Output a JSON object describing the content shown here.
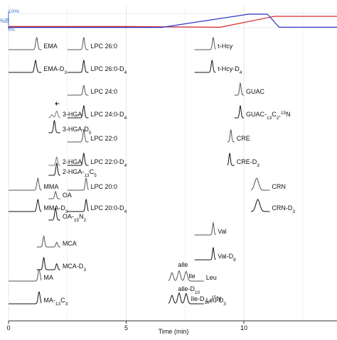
{
  "chart_data": {
    "type": "line",
    "title": "",
    "xlabel": "Time (min)",
    "ylabel": "",
    "xlim": [
      -0.3,
      14
    ],
    "xticks": [
      0,
      5,
      10
    ],
    "gradient": {
      "top_label": "100%",
      "bottom_label": "0%",
      "side_label": "%B",
      "series": [
        {
          "name": "",
          "color": "#d62728",
          "points": [
            [
              0,
              8
            ],
            [
              5,
              8
            ],
            [
              9,
              3
            ],
            [
              11.3,
              80
            ],
            [
              14,
              80
            ]
          ]
        },
        {
          "name": "",
          "color": "#2b36c4",
          "points": [
            [
              0,
              2
            ],
            [
              6.5,
              2
            ],
            [
              10.2,
              95
            ],
            [
              11,
              95
            ],
            [
              11.5,
              3
            ],
            [
              14,
              3
            ]
          ]
        }
      ]
    },
    "traces": [
      {
        "label": "EMA",
        "color": "#555555",
        "row": 1,
        "x_start": 0,
        "x_end": 1.4,
        "peaks": [
          {
            "rt": 1.2,
            "height": 1.0,
            "width": 0.045
          }
        ]
      },
      {
        "label": "EMA-D",
        "sub": "3",
        "sup": "",
        "color": "#111111",
        "row": 2,
        "x_start": 0,
        "x_end": 1.4,
        "peaks": [
          {
            "rt": 1.15,
            "height": 1.0,
            "width": 0.045
          }
        ]
      },
      {
        "label": "LPC 26:0",
        "color": "#555555",
        "row": 1,
        "x_start": 2.5,
        "x_end": 3.4,
        "peaks": [
          {
            "rt": 3.2,
            "height": 1.0,
            "width": 0.04
          }
        ]
      },
      {
        "label": "LPC 26:0-D",
        "sub": "4",
        "sup": "",
        "color": "#111111",
        "row": 2,
        "x_start": 2.5,
        "x_end": 3.4,
        "peaks": [
          {
            "rt": 3.2,
            "height": 1.0,
            "width": 0.04
          }
        ]
      },
      {
        "label": "t-Hcy",
        "color": "#555555",
        "row": 1,
        "x_start": 7.9,
        "x_end": 8.8,
        "peaks": [
          {
            "rt": 8.7,
            "height": 1.0,
            "width": 0.04
          }
        ]
      },
      {
        "label": "t-Hcy-D",
        "sub": "4",
        "sup": "",
        "color": "#111111",
        "row": 2,
        "x_start": 7.9,
        "x_end": 8.8,
        "peaks": [
          {
            "rt": 8.65,
            "height": 1.0,
            "width": 0.04
          }
        ]
      },
      {
        "label": "LPC 24:0",
        "color": "#555555",
        "row": 3,
        "x_start": 2.5,
        "x_end": 3.4,
        "peaks": [
          {
            "rt": 3.2,
            "height": 0.8,
            "width": 0.04
          }
        ]
      },
      {
        "label": "GUAC",
        "color": "#555555",
        "row": 3,
        "x_start": 9.6,
        "x_end": 10.0,
        "peaks": [
          {
            "rt": 9.85,
            "height": 1.0,
            "width": 0.035
          }
        ]
      },
      {
        "label": "3-HGA",
        "color": "#777777",
        "row": 4,
        "x_start": 1.7,
        "x_end": 2.2,
        "peaks": [
          {
            "rt": 1.85,
            "height": 0.25,
            "width": 0.05
          },
          {
            "rt": 2.05,
            "height": 0.55,
            "width": 0.05
          }
        ]
      },
      {
        "label": "LPC 24:0-D",
        "sub": "4",
        "sup": "",
        "color": "#111111",
        "row": 4,
        "x_start": 2.5,
        "x_end": 3.4,
        "peaks": [
          {
            "rt": 3.2,
            "height": 1.0,
            "width": 0.04
          }
        ]
      },
      {
        "label": "GUAC-",
        "sub": "13",
        "sup": "",
        "extra": "C",
        "sub2": "2",
        "tail": ",",
        "sup2": "15",
        "tail2": "N",
        "color": "#111111",
        "row": 4,
        "x_start": 9.6,
        "x_end": 10.0,
        "peaks": [
          {
            "rt": 9.85,
            "height": 1.0,
            "width": 0.035
          }
        ]
      },
      {
        "label": "3-HGA-D",
        "sub": "5",
        "sup": "",
        "color": "#111111",
        "row": 5,
        "x_start": 1.7,
        "x_end": 2.2,
        "peaks": [
          {
            "rt": 1.95,
            "height": 1.0,
            "width": 0.04
          }
        ]
      },
      {
        "label": "LPC 22:0",
        "color": "#555555",
        "row": 6,
        "x_start": 2.5,
        "x_end": 3.4,
        "peaks": [
          {
            "rt": 3.2,
            "height": 1.0,
            "width": 0.04
          }
        ]
      },
      {
        "label": "CRE",
        "color": "#555555",
        "row": 6,
        "x_start": 9.3,
        "x_end": 9.6,
        "peaks": [
          {
            "rt": 9.45,
            "height": 1.0,
            "width": 0.035
          }
        ]
      },
      {
        "label": "2-HGA",
        "color": "#777777",
        "row": 7,
        "x_start": 1.7,
        "x_end": 2.2,
        "peaks": [
          {
            "rt": 2.05,
            "height": 0.7,
            "width": 0.04
          }
        ]
      },
      {
        "label": "LPC 22:0-D",
        "sub": "4",
        "sup": "",
        "color": "#111111",
        "row": 7,
        "x_start": 2.5,
        "x_end": 3.4,
        "peaks": [
          {
            "rt": 3.2,
            "height": 1.0,
            "width": 0.04
          }
        ]
      },
      {
        "label": "CRE-D",
        "sub": "3",
        "sup": "",
        "color": "#111111",
        "row": 7,
        "x_start": 9.3,
        "x_end": 9.6,
        "peaks": [
          {
            "rt": 9.4,
            "height": 1.0,
            "width": 0.035
          }
        ]
      },
      {
        "label": "2-HGA-",
        "sub": "13",
        "sup": "",
        "extra": "C",
        "sub2": "5",
        "color": "#111111",
        "row": 8,
        "x_start": 1.7,
        "x_end": 2.2,
        "peaks": [
          {
            "rt": 2.05,
            "height": 1.0,
            "width": 0.04
          }
        ]
      },
      {
        "label": "MMA",
        "color": "#555555",
        "row": 9,
        "x_start": 0,
        "x_end": 1.4,
        "peaks": [
          {
            "rt": 1.25,
            "height": 1.0,
            "width": 0.045
          }
        ]
      },
      {
        "label": "LPC 20:0",
        "color": "#555555",
        "row": 9,
        "x_start": 2.5,
        "x_end": 3.4,
        "peaks": [
          {
            "rt": 3.3,
            "height": 1.0,
            "width": 0.04
          }
        ]
      },
      {
        "label": "CRN",
        "color": "#555555",
        "row": 9,
        "x_start": 10.3,
        "x_end": 11.1,
        "peaks": [
          {
            "rt": 10.55,
            "height": 1.0,
            "width": 0.09
          }
        ]
      },
      {
        "label": "OA",
        "color": "#555555",
        "row": 10,
        "x_start": 1.7,
        "x_end": 2.2,
        "peaks": [
          {
            "rt": 2.0,
            "height": 0.6,
            "width": 0.04
          }
        ]
      },
      {
        "label": "MMA-D",
        "sub": "3",
        "sup": "",
        "color": "#111111",
        "row": 11,
        "x_start": 0,
        "x_end": 1.4,
        "peaks": [
          {
            "rt": 1.25,
            "height": 1.0,
            "width": 0.045
          }
        ]
      },
      {
        "label": "LPC 20:0-D",
        "sub": "4",
        "sup": "",
        "color": "#111111",
        "row": 11,
        "x_start": 2.5,
        "x_end": 3.4,
        "peaks": [
          {
            "rt": 3.3,
            "height": 1.0,
            "width": 0.04
          }
        ]
      },
      {
        "label": "CRN-D",
        "sub": "3",
        "sup": "",
        "color": "#111111",
        "row": 11,
        "x_start": 10.3,
        "x_end": 11.1,
        "peaks": [
          {
            "rt": 10.6,
            "height": 1.0,
            "width": 0.09
          }
        ]
      },
      {
        "label": "OA-",
        "sub": "15",
        "sup": "",
        "extra": "N",
        "sub2": "2",
        "color": "#111111",
        "row": 12,
        "x_start": 1.7,
        "x_end": 2.2,
        "peaks": [
          {
            "rt": 2.0,
            "height": 1.0,
            "width": 0.04
          }
        ]
      },
      {
        "label": "Val",
        "color": "#555555",
        "row": 13,
        "x_start": 7.9,
        "x_end": 8.8,
        "peaks": [
          {
            "rt": 8.7,
            "height": 1.0,
            "width": 0.035
          }
        ]
      },
      {
        "label": "MCA",
        "color": "#555555",
        "row": 14,
        "x_start": 1.2,
        "x_end": 2.2,
        "peaks": [
          {
            "rt": 1.5,
            "height": 0.9,
            "width": 0.04
          },
          {
            "rt": 2.05,
            "height": 0.4,
            "width": 0.04
          }
        ]
      },
      {
        "label": "Val-D",
        "sub": "8",
        "sup": "",
        "color": "#111111",
        "row": 15,
        "x_start": 7.9,
        "x_end": 8.8,
        "peaks": [
          {
            "rt": 8.7,
            "height": 1.0,
            "width": 0.035
          }
        ]
      },
      {
        "label": "MCA-D",
        "sub": "3",
        "sup": "",
        "color": "#111111",
        "row": 16,
        "x_start": 1.2,
        "x_end": 2.2,
        "peaks": [
          {
            "rt": 1.5,
            "height": 1.0,
            "width": 0.04
          },
          {
            "rt": 2.05,
            "height": 0.5,
            "width": 0.04
          }
        ]
      },
      {
        "label": "MA",
        "color": "#555555",
        "row": 17,
        "x_start": 0,
        "x_end": 1.4,
        "peaks": [
          {
            "rt": 1.3,
            "height": 1.0,
            "width": 0.045
          }
        ]
      },
      {
        "label": "Leu",
        "color": "#555555",
        "row": 17,
        "x_start": 6.8,
        "x_end": 8.3,
        "peaks": [
          {
            "rt": 6.95,
            "height": 0.7,
            "width": 0.06
          },
          {
            "rt": 7.25,
            "height": 0.85,
            "width": 0.06
          },
          {
            "rt": 7.55,
            "height": 0.8,
            "width": 0.06
          }
        ]
      },
      {
        "label": "MA-",
        "sub": "13",
        "sup": "",
        "extra": "C",
        "sub2": "3",
        "color": "#111111",
        "row": 19,
        "x_start": 0,
        "x_end": 1.4,
        "peaks": [
          {
            "rt": 1.3,
            "height": 1.0,
            "width": 0.045
          }
        ]
      },
      {
        "label": "Leu-D",
        "sub": "3",
        "sup": "",
        "color": "#111111",
        "row": 19,
        "x_start": 6.8,
        "x_end": 8.3,
        "peaks": [
          {
            "rt": 6.95,
            "height": 0.7,
            "width": 0.06
          },
          {
            "rt": 7.25,
            "height": 0.9,
            "width": 0.06
          },
          {
            "rt": 7.55,
            "height": 0.85,
            "width": 0.06
          }
        ]
      }
    ],
    "extra_labels": [
      {
        "label": "alle",
        "color": "#111111"
      },
      {
        "label": "Ile",
        "color": "#111111"
      },
      {
        "label": "alle-D",
        "sub": "10",
        "color": "#111111"
      },
      {
        "label": "Ile-D",
        "sub": "10",
        "tail": ",",
        "sup2": "15",
        "tail2": "N",
        "color": "#111111"
      }
    ]
  }
}
